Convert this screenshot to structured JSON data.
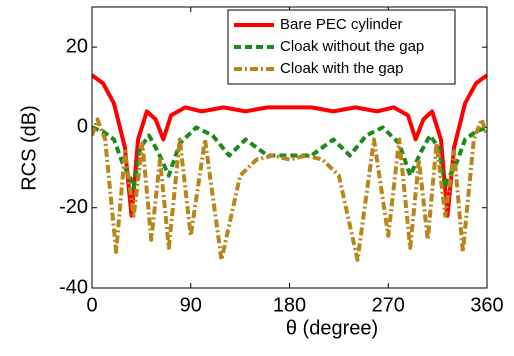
{
  "chart_data": {
    "type": "line",
    "xlabel": "θ (degree)",
    "ylabel": "RCS (dB)",
    "xlim": [
      0,
      360
    ],
    "xticks": [
      0,
      90,
      180,
      270,
      360
    ],
    "ylim": [
      -40,
      30
    ],
    "yticks": [
      -40,
      -20,
      0,
      20
    ],
    "legend": "upper right",
    "series": [
      {
        "name": "Bare PEC cylinder",
        "color": "#ff0000",
        "style": "solid",
        "x": [
          0,
          10,
          20,
          30,
          36,
          42,
          50,
          58,
          65,
          72,
          85,
          100,
          120,
          140,
          160,
          180,
          200,
          220,
          240,
          260,
          275,
          288,
          295,
          302,
          310,
          318,
          324,
          330,
          340,
          350,
          360
        ],
        "values": [
          13,
          11,
          6,
          -5,
          -22,
          -3,
          4,
          2,
          -3,
          3,
          5,
          4,
          5,
          4,
          5,
          5,
          5,
          4,
          5,
          4,
          5,
          3,
          -3,
          2,
          4,
          -3,
          -22,
          -5,
          6,
          11,
          13
        ]
      },
      {
        "name": "Cloak without the gap",
        "color": "#1a8a1a",
        "style": "dashed",
        "x": [
          0,
          10,
          20,
          28,
          34,
          38,
          44,
          52,
          60,
          70,
          80,
          95,
          110,
          125,
          140,
          160,
          180,
          200,
          220,
          235,
          250,
          265,
          280,
          290,
          300,
          308,
          316,
          322,
          326,
          332,
          340,
          350,
          360
        ],
        "values": [
          0,
          -1,
          -3,
          -9,
          -12,
          -15,
          -5,
          -2,
          -6,
          -12,
          -4,
          0,
          -2,
          -7,
          -3,
          -7,
          -7,
          -7,
          -3,
          -7,
          -2,
          0,
          -4,
          -12,
          -6,
          -2,
          -5,
          -15,
          -12,
          -9,
          -3,
          -1,
          0
        ]
      },
      {
        "name": "Cloak with the gap",
        "color": "#b8861a",
        "style": "dashdot",
        "x": [
          0,
          5,
          12,
          22,
          30,
          38,
          46,
          54,
          62,
          70,
          80,
          90,
          103,
          118,
          135,
          150,
          165,
          180,
          195,
          210,
          225,
          242,
          257,
          270,
          280,
          290,
          298,
          306,
          314,
          322,
          330,
          338,
          348,
          355,
          360
        ],
        "values": [
          -2,
          2,
          -3,
          -31,
          -6,
          -22,
          -4,
          -28,
          -8,
          -30,
          -3,
          -27,
          -3,
          -33,
          -12,
          -8,
          -7,
          -8,
          -7,
          -8,
          -12,
          -33,
          -3,
          -27,
          -3,
          -30,
          -8,
          -28,
          -4,
          -22,
          -6,
          -31,
          -3,
          2,
          -2
        ]
      }
    ]
  }
}
